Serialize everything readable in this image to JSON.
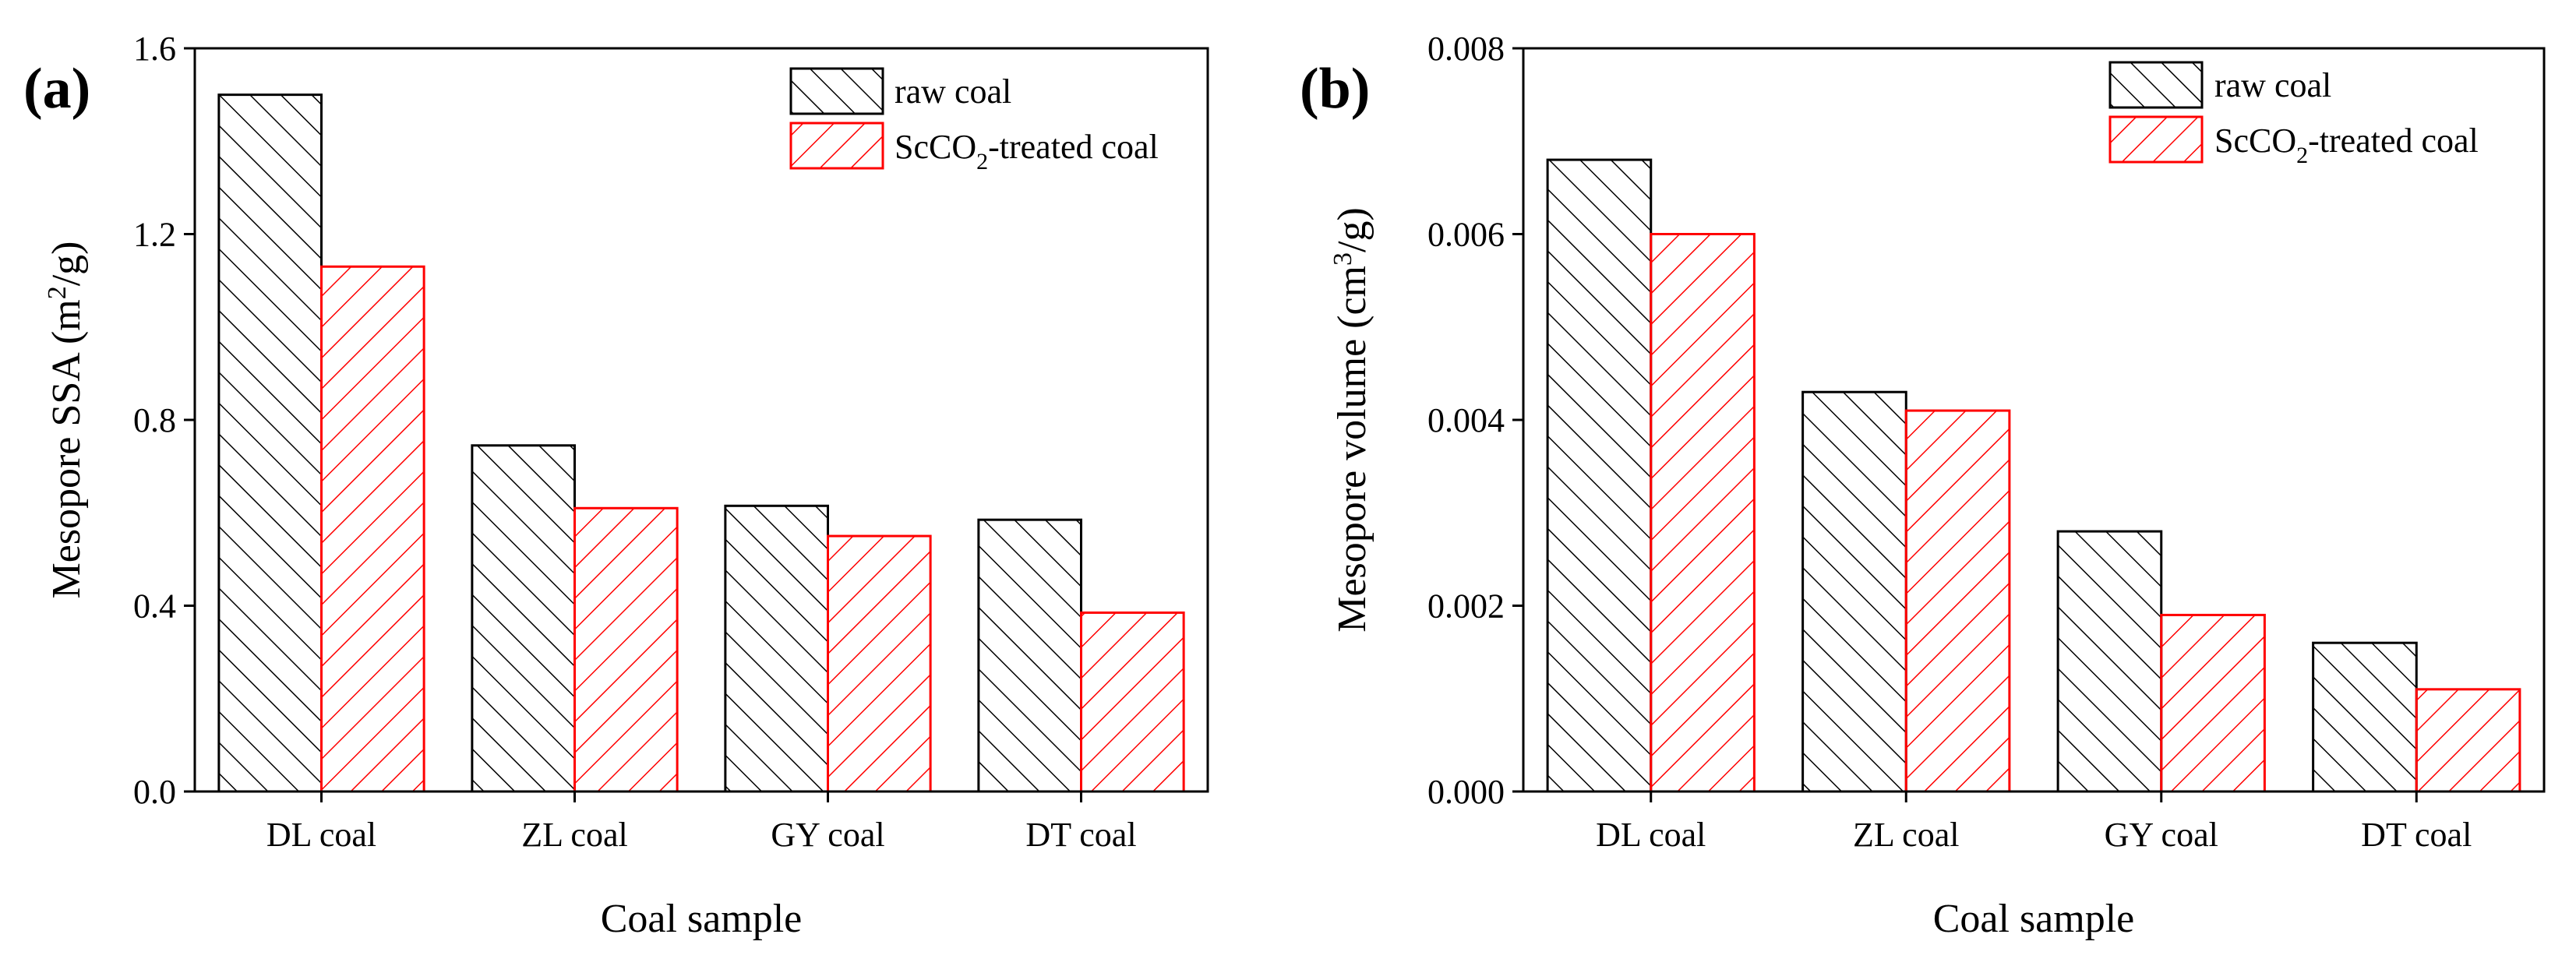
{
  "chart_data": [
    {
      "type": "bar",
      "panel_label": "(a)",
      "title": "",
      "categories": [
        "DL coal",
        "ZL coal",
        "GY coal",
        "DT coal"
      ],
      "series": [
        {
          "name": "raw coal",
          "values": [
            1.5,
            0.745,
            0.615,
            0.585
          ],
          "color": "#000000",
          "hatch": "backslash"
        },
        {
          "name": "ScCO2-treated coal",
          "values": [
            1.13,
            0.61,
            0.55,
            0.385
          ],
          "color": "#ff0000",
          "hatch": "slash"
        }
      ],
      "xlabel": "Coal sample",
      "ylabel": "Mesopore SSA (m2/g)",
      "ylim": [
        0,
        1.6
      ],
      "yticks": [
        "0.0",
        "0.4",
        "0.8",
        "1.2",
        "1.6"
      ],
      "ytick_values": [
        0,
        0.4,
        0.8,
        1.2,
        1.6
      ],
      "legend_position": "top-right",
      "grid": false
    },
    {
      "type": "bar",
      "panel_label": "(b)",
      "title": "",
      "categories": [
        "DL coal",
        "ZL coal",
        "GY coal",
        "DT coal"
      ],
      "series": [
        {
          "name": "raw coal",
          "values": [
            0.0068,
            0.0043,
            0.0028,
            0.0016
          ],
          "color": "#000000",
          "hatch": "backslash"
        },
        {
          "name": "ScCO2-treated coal",
          "values": [
            0.006,
            0.0041,
            0.0019,
            0.0011
          ],
          "color": "#ff0000",
          "hatch": "slash"
        }
      ],
      "xlabel": "Coal sample",
      "ylabel": "Mesopore volume (cm3/g)",
      "ylim": [
        0,
        0.008
      ],
      "yticks": [
        "0.000",
        "0.002",
        "0.004",
        "0.006",
        "0.008"
      ],
      "ytick_values": [
        0,
        0.002,
        0.004,
        0.006,
        0.008
      ],
      "legend_position": "top-right",
      "grid": false
    }
  ]
}
